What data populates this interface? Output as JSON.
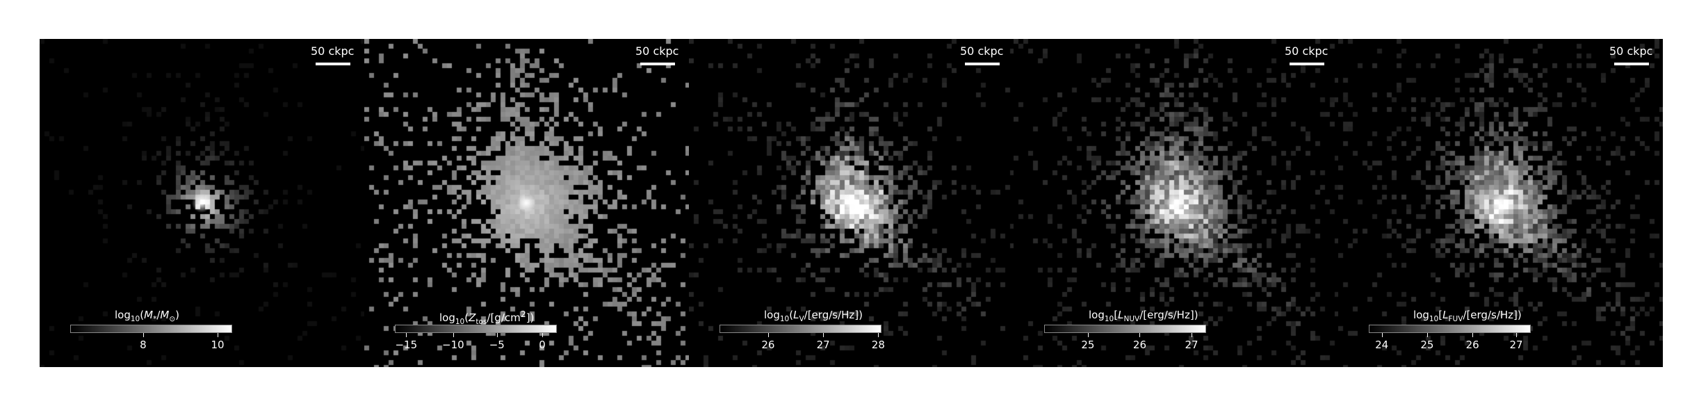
{
  "panels": [
    {
      "scale_label": "50 ckpc",
      "cbar_label_html": "log<sub>10</sub>(<i>M</i><sub>*</sub>/<i>M</i><sub>⊙</sub>)",
      "ticks": [
        {
          "label": "8",
          "pos": 0.45
        },
        {
          "label": "10",
          "pos": 0.91
        }
      ],
      "fill": 0.08,
      "core": 0.9
    },
    {
      "scale_label": "50 ckpc",
      "cbar_label_html": "log<sub>10</sub>(<i>Z</i><sub>tos</sub>/[g/cm<sup>2</sup>])",
      "ticks": [
        {
          "label": "−15",
          "pos": 0.07
        },
        {
          "label": "−10",
          "pos": 0.36
        },
        {
          "label": "−5",
          "pos": 0.63
        },
        {
          "label": "0",
          "pos": 0.91
        }
      ],
      "fill": 0.55,
      "core": 0.75
    },
    {
      "scale_label": "50 ckpc",
      "cbar_label_html": "log<sub>10</sub>(<i>L</i><sub>V</sub>/[erg/s/Hz])",
      "ticks": [
        {
          "label": "26",
          "pos": 0.3
        },
        {
          "label": "27",
          "pos": 0.64
        },
        {
          "label": "28",
          "pos": 0.98
        }
      ],
      "fill": 0.35,
      "core": 0.85
    },
    {
      "scale_label": "50 ckpc",
      "cbar_label_html": "log<sub>10</sub>[<i>L</i><sub>NUV</sub>/[erg/s/Hz])",
      "ticks": [
        {
          "label": "25",
          "pos": 0.27
        },
        {
          "label": "26",
          "pos": 0.59
        },
        {
          "label": "27",
          "pos": 0.91
        }
      ],
      "fill": 0.5,
      "core": 0.7
    },
    {
      "scale_label": "50 ckpc",
      "cbar_label_html": "log<sub>10</sub>[<i>L</i><sub>FUV</sub>/[erg/s/Hz])",
      "ticks": [
        {
          "label": "24",
          "pos": 0.08
        },
        {
          "label": "25",
          "pos": 0.36
        },
        {
          "label": "26",
          "pos": 0.64
        },
        {
          "label": "27",
          "pos": 0.91
        }
      ],
      "fill": 0.5,
      "core": 0.7
    }
  ]
}
